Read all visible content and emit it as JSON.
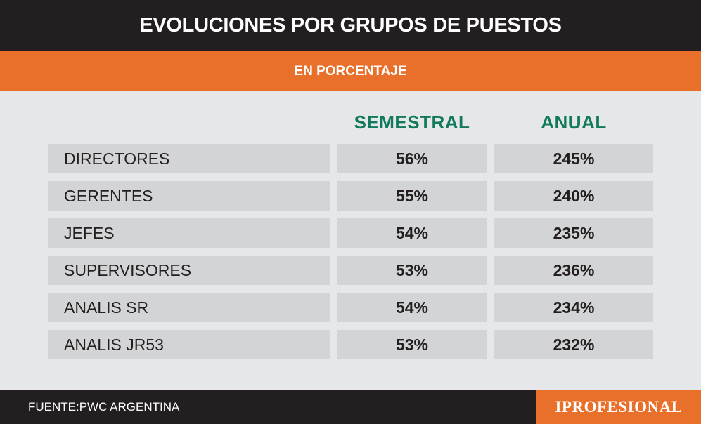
{
  "title": "EVOLUCIONES POR GRUPOS DE PUESTOS",
  "subtitle": "EN PORCENTAJE",
  "source": "FUENTE:PWC ARGENTINA",
  "logo": "IPROFESIONAL",
  "colors": {
    "title_bg": "#231f20",
    "accent_orange": "#e8702a",
    "header_green": "#127a5c",
    "background": "#e6e7e9",
    "cell_bg": "#d3d4d6"
  },
  "chart_data": {
    "type": "table",
    "title": "EVOLUCIONES POR GRUPOS DE PUESTOS",
    "subtitle": "EN PORCENTAJE",
    "columns": [
      "SEMESTRAL",
      "ANUAL"
    ],
    "rows": [
      {
        "label": "DIRECTORES",
        "semestral": "56%",
        "anual": "245%"
      },
      {
        "label": "GERENTES",
        "semestral": "55%",
        "anual": "240%"
      },
      {
        "label": "JEFES",
        "semestral": "54%",
        "anual": "235%"
      },
      {
        "label": "SUPERVISORES",
        "semestral": "53%",
        "anual": "236%"
      },
      {
        "label": "ANALIS SR",
        "semestral": "54%",
        "anual": "234%"
      },
      {
        "label": "ANALIS JR53",
        "semestral": "53%",
        "anual": "232%"
      }
    ],
    "series": [
      {
        "name": "SEMESTRAL",
        "values": [
          56,
          55,
          54,
          53,
          54,
          53
        ]
      },
      {
        "name": "ANUAL",
        "values": [
          245,
          240,
          235,
          236,
          234,
          232
        ]
      }
    ]
  }
}
